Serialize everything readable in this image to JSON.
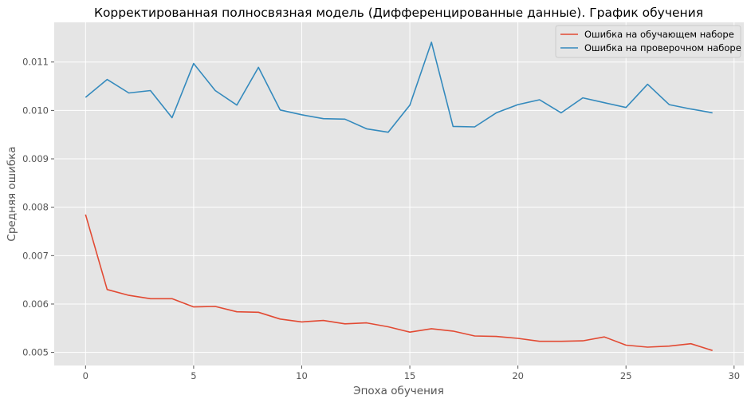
{
  "chart_data": {
    "type": "line",
    "title": "Корректированная полносвязная модель (Дифференцированные данные). График обучения",
    "xlabel": "Эпоха обучения",
    "ylabel": "Средняя ошибка",
    "x": [
      0,
      1,
      2,
      3,
      4,
      5,
      6,
      7,
      8,
      9,
      10,
      11,
      12,
      13,
      14,
      15,
      16,
      17,
      18,
      19,
      20,
      21,
      22,
      23,
      24,
      25,
      26,
      27,
      28,
      29
    ],
    "xlim": [
      -1.45,
      30.45
    ],
    "ylim": [
      0.00473,
      0.01182
    ],
    "xticks": [
      "0",
      "5",
      "10",
      "15",
      "20",
      "25",
      "30"
    ],
    "xtick_values": [
      0,
      5,
      10,
      15,
      20,
      25,
      30
    ],
    "yticks": [
      "0.005",
      "0.006",
      "0.007",
      "0.008",
      "0.009",
      "0.010",
      "0.011"
    ],
    "ytick_values": [
      0.005,
      0.006,
      0.007,
      0.008,
      0.009,
      0.01,
      0.011
    ],
    "grid": true,
    "legend_position": "top-right",
    "series": [
      {
        "name": "Ошибка на обучающем наборе",
        "color": "#E24A33",
        "values": [
          0.00785,
          0.0063,
          0.00618,
          0.00611,
          0.00611,
          0.00594,
          0.00595,
          0.00584,
          0.00583,
          0.00569,
          0.00563,
          0.00566,
          0.00559,
          0.00561,
          0.00553,
          0.00542,
          0.00549,
          0.00544,
          0.00534,
          0.00533,
          0.00529,
          0.00523,
          0.00523,
          0.00524,
          0.00532,
          0.00515,
          0.00511,
          0.00513,
          0.00518,
          0.00504
        ]
      },
      {
        "name": "Ошибка на проверочном наборе",
        "color": "#348ABD",
        "values": [
          0.01027,
          0.01064,
          0.01036,
          0.01041,
          0.00985,
          0.01097,
          0.01041,
          0.01011,
          0.01089,
          0.01001,
          0.00991,
          0.00983,
          0.00982,
          0.00962,
          0.00955,
          0.01011,
          0.01141,
          0.00967,
          0.00966,
          0.00995,
          0.01012,
          0.01022,
          0.00995,
          0.01026,
          0.01016,
          0.01006,
          0.01054,
          0.01012,
          0.01003,
          0.00995
        ]
      }
    ]
  },
  "style": {
    "background": "#E5E5E5",
    "grid_color": "#FFFFFF",
    "tick_color": "#555555"
  }
}
